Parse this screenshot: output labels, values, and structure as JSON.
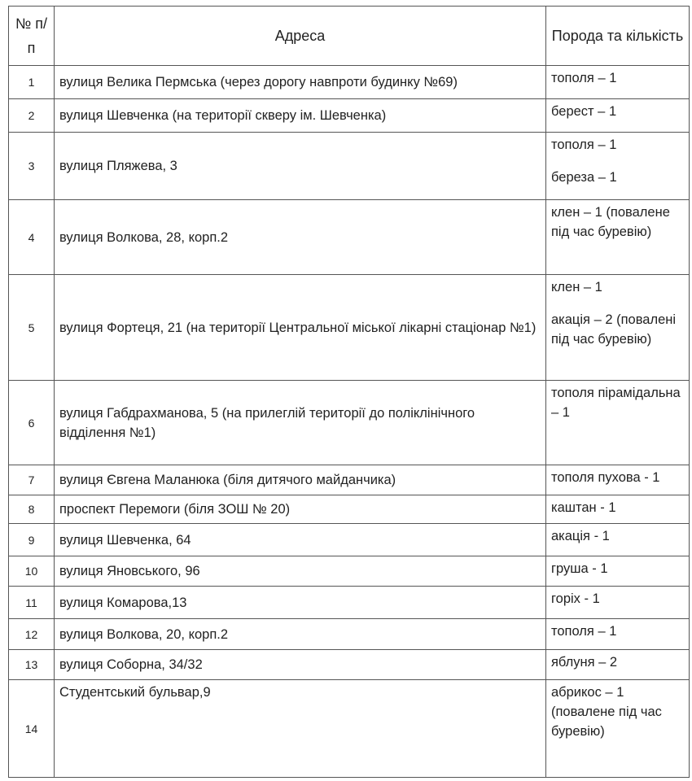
{
  "headers": {
    "num": "№ п/п",
    "address": "Адреса",
    "species": "Порода та кількість"
  },
  "rows": [
    {
      "num": "1",
      "address": "вулиця Велика Пермська (через дорогу навпроти будинку №69)",
      "species": [
        "тополя – 1"
      ]
    },
    {
      "num": "2",
      "address": "вулиця Шевченка (на території скверу ім. Шевченка)",
      "species": [
        "берест – 1"
      ]
    },
    {
      "num": "3",
      "address": "вулиця Пляжева, 3",
      "species": [
        "тополя – 1",
        "береза – 1"
      ]
    },
    {
      "num": "4",
      "address": "вулиця Волкова, 28, корп.2",
      "species": [
        "клен – 1 (повалене під час буревію)"
      ]
    },
    {
      "num": "5",
      "address": "вулиця Фортеця, 21 (на території Центральної міської лікарні стаціонар №1)",
      "species": [
        "клен – 1",
        "акація – 2 (повалені під час буревію)"
      ]
    },
    {
      "num": "6",
      "address": "вулиця Габдрахманова, 5  (на прилеглій території до поліклінічного відділення  №1)",
      "species": [
        "тополя пірамідальна  – 1"
      ]
    },
    {
      "num": "7",
      "address": "вулиця Євгена Маланюка (біля дитячого майданчика)",
      "species": [
        "тополя пухова - 1"
      ]
    },
    {
      "num": "8",
      "address": "проспект Перемоги  (біля ЗОШ № 20)",
      "species": [
        "каштан - 1"
      ]
    },
    {
      "num": "9",
      "address": "вулиця Шевченка, 64",
      "species": [
        "акація - 1"
      ]
    },
    {
      "num": "10",
      "address": "вулиця Яновського, 96",
      "species": [
        "груша - 1"
      ]
    },
    {
      "num": "11",
      "address": "вулиця Комарова,13",
      "species": [
        "горіх - 1"
      ]
    },
    {
      "num": "12",
      "address": "вулиця Волкова, 20, корп.2",
      "species": [
        "тополя – 1"
      ]
    },
    {
      "num": "13",
      "address": "вулиця Соборна, 34/32",
      "species": [
        "яблуня – 2"
      ]
    },
    {
      "num": "14",
      "address": "Студентський бульвар,9",
      "species": [
        "абрикос – 1 (повалене під час буревію)"
      ]
    }
  ]
}
